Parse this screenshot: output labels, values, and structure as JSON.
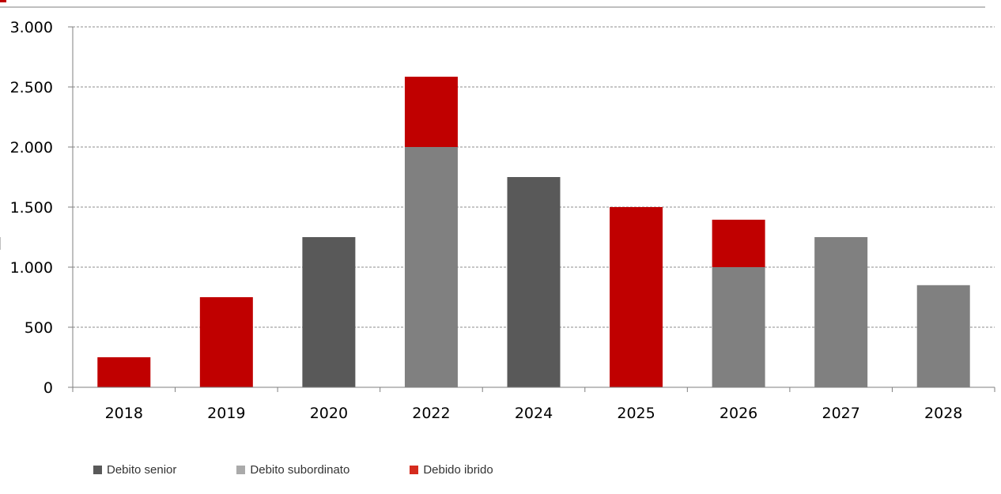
{
  "chart_data": {
    "type": "bar",
    "stacked": true,
    "categories": [
      "2018",
      "2019",
      "2020",
      "2022",
      "2024",
      "2025",
      "2026",
      "2027",
      "2028"
    ],
    "series": [
      {
        "name": "Debito senior",
        "color": "#595959",
        "values": [
          0,
          0,
          1250,
          0,
          1750,
          0,
          0,
          0,
          0
        ]
      },
      {
        "name": "Debito subordinato",
        "color": "#808080",
        "values": [
          0,
          0,
          0,
          2000,
          0,
          0,
          1000,
          1250,
          850
        ]
      },
      {
        "name": "Debido ibrido",
        "color": "#c00000",
        "values": [
          250,
          750,
          0,
          585,
          0,
          1500,
          395,
          0,
          0
        ]
      }
    ],
    "legend_swatch_colors": [
      "#595959",
      "#aaaaaa",
      "#d52b1e"
    ],
    "ylim": [
      0,
      3000
    ],
    "yticks": [
      0,
      500,
      1000,
      1500,
      2000,
      2500,
      3000
    ],
    "ytick_labels": [
      "0",
      "500",
      "1.000",
      "1.500",
      "2.000",
      "2.500",
      "3.000"
    ],
    "grid": "horizontal-dashed",
    "legend_position": "bottom-left",
    "title": "",
    "xlabel": "",
    "ylabel": "",
    "accent_color": "#c00000"
  }
}
